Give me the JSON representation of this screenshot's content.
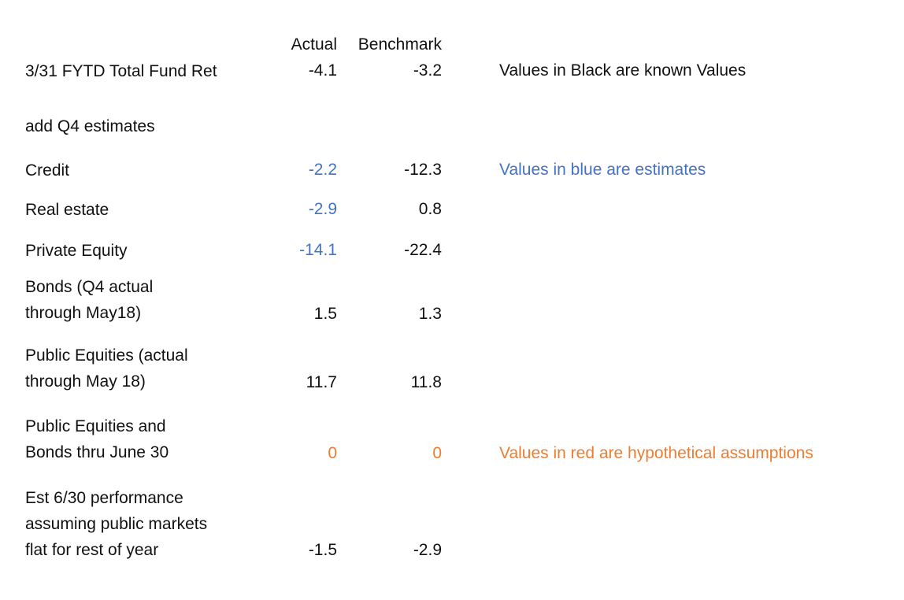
{
  "header": {
    "actual": "Actual",
    "benchmark": "Benchmark"
  },
  "rows": [
    {
      "label": "3/31 FYTD Total Fund Ret",
      "actual": "-4.1",
      "benchmark": "-3.2"
    },
    {
      "label": "add Q4 estimates"
    },
    {
      "label": "Credit",
      "actual": "-2.2",
      "benchmark": "-12.3"
    },
    {
      "label": "Real estate",
      "actual": "-2.9",
      "benchmark": "0.8"
    },
    {
      "label": "Private Equity",
      "actual": "-14.1",
      "benchmark": "-22.4"
    },
    {
      "label": "Bonds (Q4 actual\nthrough May18)",
      "actual": "1.5",
      "benchmark": "1.3"
    },
    {
      "label": "Public Equities (actual\nthrough May 18)",
      "actual": "11.7",
      "benchmark": "11.8"
    },
    {
      "label": "Public Equities and\nBonds thru June 30",
      "actual": "0",
      "benchmark": "0"
    },
    {
      "label": "Est 6/30 performance\nassuming public markets\nflat for rest of year",
      "actual": "-1.5",
      "benchmark": "-2.9"
    }
  ],
  "notes": {
    "black": "Values in Black are known Values",
    "blue": "Values in blue are estimates",
    "red": "Values in red are hypothetical assumptions"
  },
  "colors": {
    "known": "#111111",
    "estimate": "#4472c4",
    "hypothetical": "#ed7d31"
  }
}
